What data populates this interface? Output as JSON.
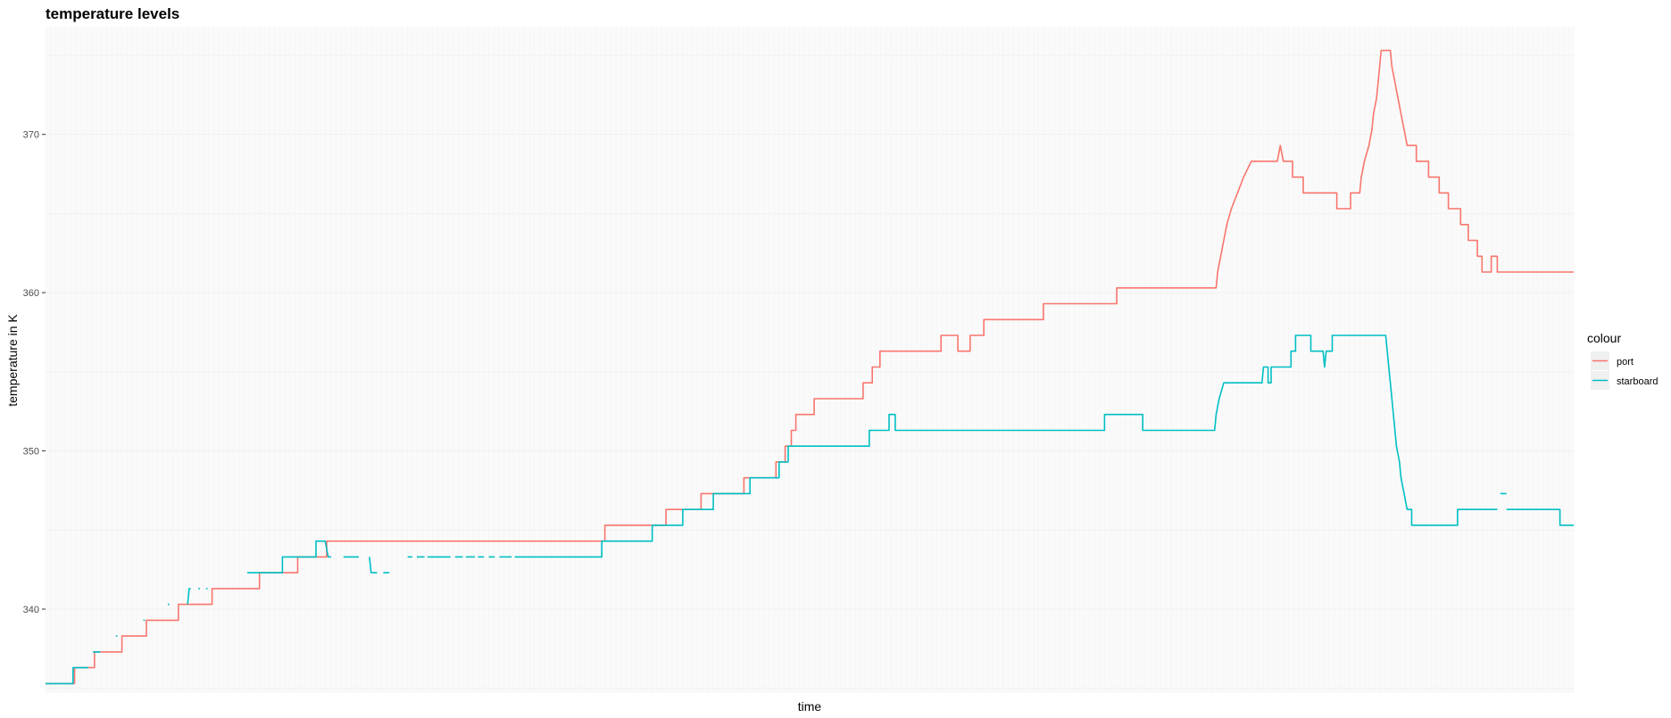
{
  "chart_data": {
    "type": "line",
    "title": "temperature levels",
    "xlabel": "time",
    "ylabel": "temperature in K",
    "y_ticks": [
      "340",
      "350",
      "360",
      "370"
    ],
    "ylim": [
      334.7,
      376.8
    ],
    "x_range": [
      0,
      1000
    ],
    "grid": true,
    "legend": {
      "title": "colour",
      "placement": "right"
    },
    "colors": {
      "port": "#f8766d",
      "starboard": "#00bfc4",
      "panel": "#fafafa",
      "grid": "#f0f0f0",
      "legend_key": "#f0f0f0"
    },
    "series": [
      {
        "name": "port",
        "color": "#f8766d",
        "points": [
          [
            0,
            335.3
          ],
          [
            19,
            335.3
          ],
          [
            19,
            336.3
          ],
          [
            32,
            336.3
          ],
          [
            32,
            337.3
          ],
          [
            50,
            337.3
          ],
          [
            50,
            338.3
          ],
          [
            66,
            338.3
          ],
          [
            66,
            339.3
          ],
          [
            87,
            339.3
          ],
          [
            87,
            340.3
          ],
          [
            109,
            340.3
          ],
          [
            109,
            341.3
          ],
          [
            140,
            341.3
          ],
          [
            140,
            342.3
          ],
          [
            165,
            342.3
          ],
          [
            165,
            343.3
          ],
          [
            184,
            343.3
          ],
          [
            184,
            344.3
          ],
          [
            366,
            344.3
          ],
          [
            366,
            345.3
          ],
          [
            406,
            345.3
          ],
          [
            406,
            346.3
          ],
          [
            429,
            346.3
          ],
          [
            429,
            347.3
          ],
          [
            457,
            347.3
          ],
          [
            457,
            348.3
          ],
          [
            478,
            348.3
          ],
          [
            478,
            349.3
          ],
          [
            484,
            349.3
          ],
          [
            484,
            350.3
          ],
          [
            488,
            350.3
          ],
          [
            488,
            351.3
          ],
          [
            491,
            351.3
          ],
          [
            491,
            352.3
          ],
          [
            503,
            352.3
          ],
          [
            503,
            353.3
          ],
          [
            535,
            353.3
          ],
          [
            535,
            354.3
          ],
          [
            541,
            354.3
          ],
          [
            541,
            355.3
          ],
          [
            546,
            355.3
          ],
          [
            546,
            356.3
          ],
          [
            586,
            356.3
          ],
          [
            586,
            357.3
          ],
          [
            597,
            357.3
          ],
          [
            597,
            356.3
          ],
          [
            605,
            356.3
          ],
          [
            605,
            357.3
          ],
          [
            614,
            357.3
          ],
          [
            614,
            358.3
          ],
          [
            653,
            358.3
          ],
          [
            653,
            359.3
          ],
          [
            701,
            359.3
          ],
          [
            701,
            360.3
          ],
          [
            766,
            360.3
          ],
          [
            767,
            361.3
          ],
          [
            769,
            362.3
          ],
          [
            771,
            363.3
          ],
          [
            773,
            364.3
          ],
          [
            776,
            365.3
          ],
          [
            780,
            366.3
          ],
          [
            784,
            367.3
          ],
          [
            789,
            368.3
          ],
          [
            806,
            368.3
          ],
          [
            808,
            369.3
          ],
          [
            810,
            368.3
          ],
          [
            816,
            368.3
          ],
          [
            816,
            367.3
          ],
          [
            823,
            367.3
          ],
          [
            823,
            366.3
          ],
          [
            845,
            366.3
          ],
          [
            845,
            365.3
          ],
          [
            854,
            365.3
          ],
          [
            854,
            366.3
          ],
          [
            860,
            366.3
          ],
          [
            861,
            367.3
          ],
          [
            863,
            368.3
          ],
          [
            866,
            369.3
          ],
          [
            868,
            370.3
          ],
          [
            869,
            371.3
          ],
          [
            871,
            372.3
          ],
          [
            872,
            373.3
          ],
          [
            873,
            374.3
          ],
          [
            874,
            375.3
          ],
          [
            880,
            375.3
          ],
          [
            881,
            374.3
          ],
          [
            883,
            373.3
          ],
          [
            885,
            372.3
          ],
          [
            887,
            371.3
          ],
          [
            889,
            370.3
          ],
          [
            891,
            369.3
          ],
          [
            897,
            369.3
          ],
          [
            897,
            368.3
          ],
          [
            905,
            368.3
          ],
          [
            905,
            367.3
          ],
          [
            912,
            367.3
          ],
          [
            912,
            366.3
          ],
          [
            918,
            366.3
          ],
          [
            918,
            365.3
          ],
          [
            926,
            365.3
          ],
          [
            926,
            364.3
          ],
          [
            931,
            364.3
          ],
          [
            931,
            363.3
          ],
          [
            937,
            363.3
          ],
          [
            937,
            362.3
          ],
          [
            940,
            362.3
          ],
          [
            940,
            361.3
          ],
          [
            946,
            361.3
          ],
          [
            946,
            362.3
          ],
          [
            950,
            362.3
          ],
          [
            950,
            361.3
          ],
          [
            1000,
            361.3
          ]
        ]
      },
      {
        "name": "starboard",
        "color": "#00bfc4",
        "segments": [
          [
            [
              0,
              335.3
            ],
            [
              18,
              335.3
            ],
            [
              18,
              336.3
            ],
            [
              28,
              336.3
            ]
          ],
          [
            [
              31,
              337.3
            ],
            [
              36,
              337.3
            ]
          ],
          [
            [
              46,
              338.3
            ],
            [
              47,
              338.3
            ]
          ],
          [
            [
              64,
              339.3
            ],
            [
              65,
              339.3
            ]
          ],
          [
            [
              80,
              340.3
            ],
            [
              81,
              340.3
            ]
          ],
          [
            [
              93,
              340.3
            ],
            [
              94,
              341.3
            ],
            [
              95,
              341.3
            ]
          ],
          [
            [
              100,
              341.3
            ],
            [
              101,
              341.3
            ]
          ],
          [
            [
              105,
              341.3
            ],
            [
              106,
              341.3
            ]
          ],
          [
            [
              132,
              342.3
            ],
            [
              155,
              342.3
            ],
            [
              155,
              343.3
            ],
            [
              177,
              343.3
            ],
            [
              177,
              344.3
            ],
            [
              183,
              344.3
            ],
            [
              185,
              343.3
            ],
            [
              187,
              343.3
            ]
          ],
          [
            [
              195,
              343.3
            ],
            [
              205,
              343.3
            ]
          ],
          [
            [
              212,
              343.3
            ],
            [
              213,
              342.3
            ],
            [
              217,
              342.3
            ]
          ],
          [
            [
              221,
              342.3
            ],
            [
              225,
              342.3
            ]
          ],
          [
            [
              237,
              343.3
            ],
            [
              240,
              343.3
            ]
          ],
          [
            [
              243,
              343.3
            ],
            [
              248,
              343.3
            ]
          ],
          [
            [
              250,
              343.3
            ],
            [
              265,
              343.3
            ]
          ],
          [
            [
              268,
              343.3
            ],
            [
              273,
              343.3
            ]
          ],
          [
            [
              275,
              343.3
            ],
            [
              281,
              343.3
            ]
          ],
          [
            [
              283,
              343.3
            ],
            [
              287,
              343.3
            ]
          ],
          [
            [
              290,
              343.3
            ],
            [
              294,
              343.3
            ]
          ],
          [
            [
              297,
              343.3
            ],
            [
              305,
              343.3
            ]
          ],
          [
            [
              307,
              343.3
            ],
            [
              364,
              343.3
            ],
            [
              364,
              344.3
            ],
            [
              397,
              344.3
            ],
            [
              397,
              345.3
            ],
            [
              417,
              345.3
            ],
            [
              417,
              346.3
            ],
            [
              437,
              346.3
            ],
            [
              437,
              347.3
            ],
            [
              461,
              347.3
            ],
            [
              461,
              348.3
            ],
            [
              480,
              348.3
            ],
            [
              480,
              349.3
            ],
            [
              486,
              349.3
            ],
            [
              486,
              350.3
            ],
            [
              539,
              350.3
            ],
            [
              539,
              351.3
            ],
            [
              552,
              351.3
            ],
            [
              552,
              352.3
            ],
            [
              556,
              352.3
            ],
            [
              556,
              351.3
            ],
            [
              693,
              351.3
            ],
            [
              693,
              352.3
            ],
            [
              718,
              352.3
            ],
            [
              718,
              351.3
            ],
            [
              765,
              351.3
            ],
            [
              766,
              352.3
            ],
            [
              768,
              353.3
            ],
            [
              771,
              354.3
            ],
            [
              796,
              354.3
            ],
            [
              797,
              355.3
            ],
            [
              800,
              355.3
            ],
            [
              800,
              354.3
            ],
            [
              802,
              354.3
            ],
            [
              802,
              355.3
            ],
            [
              815,
              355.3
            ],
            [
              815,
              356.3
            ],
            [
              818,
              356.3
            ],
            [
              818,
              357.3
            ],
            [
              828,
              357.3
            ],
            [
              828,
              356.3
            ],
            [
              836,
              356.3
            ],
            [
              837,
              355.3
            ],
            [
              838,
              356.3
            ],
            [
              842,
              356.3
            ],
            [
              842,
              357.3
            ],
            [
              877,
              357.3
            ],
            [
              878,
              356.3
            ],
            [
              879,
              355.3
            ],
            [
              880,
              354.3
            ],
            [
              881,
              353.3
            ],
            [
              882,
              352.3
            ],
            [
              883,
              351.3
            ],
            [
              884,
              350.3
            ],
            [
              886,
              349.3
            ],
            [
              887,
              348.3
            ],
            [
              889,
              347.3
            ],
            [
              891,
              346.3
            ],
            [
              894,
              346.3
            ],
            [
              894,
              345.3
            ],
            [
              924,
              345.3
            ],
            [
              924,
              346.3
            ],
            [
              950,
              346.3
            ]
          ],
          [
            [
              952,
              347.3
            ],
            [
              956,
              347.3
            ]
          ],
          [
            [
              956,
              346.3
            ],
            [
              991,
              346.3
            ],
            [
              991,
              345.3
            ],
            [
              1000,
              345.3
            ]
          ]
        ]
      }
    ]
  }
}
